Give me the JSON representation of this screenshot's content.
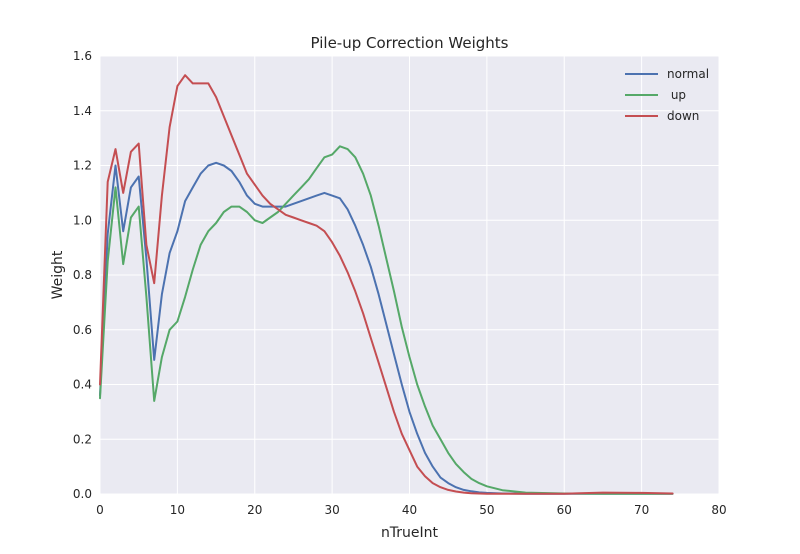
{
  "chart_data": {
    "type": "line",
    "title": "Pile-up Correction Weights",
    "xlabel": "nTrueInt",
    "ylabel": "Weight",
    "xlim": [
      0,
      80
    ],
    "ylim": [
      0,
      1.6
    ],
    "xticks": [
      "0",
      "10",
      "20",
      "30",
      "40",
      "50",
      "60",
      "70",
      "80"
    ],
    "yticks": [
      "0.0",
      "0.2",
      "0.4",
      "0.6",
      "0.8",
      "1.0",
      "1.2",
      "1.4",
      "1.6"
    ],
    "grid": true,
    "legend_position": "top-right",
    "background": "#EAEAF2",
    "series": [
      {
        "name": "normal",
        "color": "#4C72B0",
        "x": [
          0,
          1,
          2,
          3,
          4,
          5,
          6,
          7,
          8,
          9,
          10,
          11,
          12,
          13,
          14,
          15,
          16,
          17,
          18,
          19,
          20,
          21,
          22,
          23,
          24,
          25,
          26,
          27,
          28,
          29,
          30,
          31,
          32,
          33,
          34,
          35,
          36,
          37,
          38,
          39,
          40,
          41,
          42,
          43,
          44,
          45,
          46,
          47,
          48,
          49,
          50,
          52,
          55,
          60,
          65,
          70,
          74
        ],
        "y": [
          0.36,
          0.95,
          1.2,
          0.96,
          1.12,
          1.16,
          0.86,
          0.49,
          0.73,
          0.88,
          0.96,
          1.07,
          1.12,
          1.17,
          1.2,
          1.21,
          1.2,
          1.18,
          1.14,
          1.09,
          1.06,
          1.05,
          1.05,
          1.05,
          1.05,
          1.06,
          1.07,
          1.08,
          1.09,
          1.1,
          1.09,
          1.08,
          1.04,
          0.98,
          0.91,
          0.83,
          0.73,
          0.62,
          0.51,
          0.4,
          0.3,
          0.22,
          0.15,
          0.1,
          0.06,
          0.04,
          0.025,
          0.015,
          0.01,
          0.006,
          0.004,
          0.002,
          0.001,
          0.001,
          0.001,
          0.001,
          0.001
        ]
      },
      {
        "name": " up",
        "color": "#55A868",
        "x": [
          0,
          1,
          2,
          3,
          4,
          5,
          6,
          7,
          8,
          9,
          10,
          11,
          12,
          13,
          14,
          15,
          16,
          17,
          18,
          19,
          20,
          21,
          22,
          23,
          24,
          25,
          26,
          27,
          28,
          29,
          30,
          31,
          32,
          33,
          34,
          35,
          36,
          37,
          38,
          39,
          40,
          41,
          42,
          43,
          44,
          45,
          46,
          47,
          48,
          49,
          50,
          52,
          55,
          60,
          65,
          70,
          74
        ],
        "y": [
          0.35,
          0.85,
          1.12,
          0.84,
          1.01,
          1.05,
          0.72,
          0.34,
          0.5,
          0.6,
          0.63,
          0.72,
          0.82,
          0.91,
          0.96,
          0.99,
          1.03,
          1.05,
          1.05,
          1.03,
          1.0,
          0.99,
          1.01,
          1.03,
          1.06,
          1.09,
          1.12,
          1.15,
          1.19,
          1.23,
          1.24,
          1.27,
          1.26,
          1.23,
          1.17,
          1.09,
          0.98,
          0.86,
          0.74,
          0.61,
          0.5,
          0.4,
          0.32,
          0.25,
          0.2,
          0.15,
          0.11,
          0.08,
          0.055,
          0.04,
          0.028,
          0.014,
          0.005,
          0.002,
          0.001,
          0.001,
          0.001
        ]
      },
      {
        "name": "down",
        "color": "#C44E52",
        "x": [
          0,
          1,
          2,
          3,
          4,
          5,
          6,
          7,
          8,
          9,
          10,
          11,
          12,
          13,
          14,
          15,
          16,
          17,
          18,
          19,
          20,
          21,
          22,
          23,
          24,
          25,
          26,
          27,
          28,
          29,
          30,
          31,
          32,
          33,
          34,
          35,
          36,
          37,
          38,
          39,
          40,
          41,
          42,
          43,
          44,
          45,
          46,
          47,
          48,
          49,
          50,
          52,
          55,
          60,
          62,
          65,
          70,
          74
        ],
        "y": [
          0.4,
          1.14,
          1.26,
          1.1,
          1.25,
          1.28,
          0.91,
          0.77,
          1.09,
          1.34,
          1.49,
          1.53,
          1.5,
          1.5,
          1.5,
          1.45,
          1.38,
          1.31,
          1.24,
          1.17,
          1.13,
          1.09,
          1.06,
          1.04,
          1.02,
          1.01,
          1.0,
          0.99,
          0.98,
          0.96,
          0.92,
          0.87,
          0.81,
          0.74,
          0.66,
          0.57,
          0.48,
          0.39,
          0.3,
          0.22,
          0.16,
          0.1,
          0.065,
          0.04,
          0.025,
          0.015,
          0.009,
          0.005,
          0.003,
          0.002,
          0.001,
          0.001,
          0.001,
          0.001,
          0.003,
          0.005,
          0.004,
          0.002
        ]
      }
    ]
  }
}
